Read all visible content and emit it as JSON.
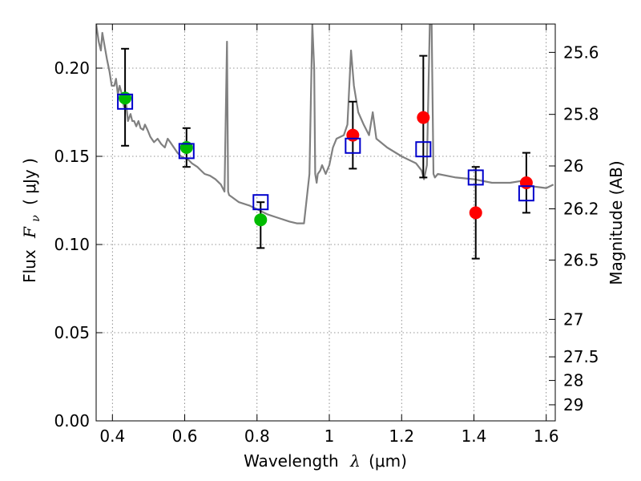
{
  "chart_data": {
    "type": "scatter",
    "xlabel": "Wavelength",
    "xlabel_symbol": "λ",
    "xlabel_unit": "(μm)",
    "ylabel": "Flux",
    "ylabel_symbol": "F",
    "ylabel_subscript": "ν",
    "ylabel_unit": "( μJy )",
    "ylabel_right": "Magnitude (AB)",
    "xlim": [
      0.355,
      1.625
    ],
    "ylim": [
      0.0,
      0.225
    ],
    "grid": true,
    "x_ticks": [
      {
        "value": 0.4,
        "label": "0.4"
      },
      {
        "value": 0.6,
        "label": "0.6"
      },
      {
        "value": 0.8,
        "label": "0.8"
      },
      {
        "value": 1.0,
        "label": "1"
      },
      {
        "value": 1.2,
        "label": "1.2"
      },
      {
        "value": 1.4,
        "label": "1.4"
      },
      {
        "value": 1.6,
        "label": "1.6"
      }
    ],
    "y_ticks": [
      {
        "value": 0.0,
        "label": "0.00"
      },
      {
        "value": 0.05,
        "label": "0.05"
      },
      {
        "value": 0.1,
        "label": "0.10"
      },
      {
        "value": 0.15,
        "label": "0.15"
      },
      {
        "value": 0.2,
        "label": "0.20"
      }
    ],
    "mag_ticks": [
      {
        "value": 25.6,
        "label": "25.6"
      },
      {
        "value": 25.8,
        "label": "25.8"
      },
      {
        "value": 26.0,
        "label": "26"
      },
      {
        "value": 26.2,
        "label": "26.2"
      },
      {
        "value": 26.5,
        "label": "26.5"
      },
      {
        "value": 27.0,
        "label": "27"
      },
      {
        "value": 27.5,
        "label": "27.5"
      },
      {
        "value": 28.0,
        "label": "28"
      },
      {
        "value": 29.0,
        "label": "29"
      }
    ],
    "model_spectrum": {
      "color": "#808080",
      "x": [
        0.355,
        0.362,
        0.368,
        0.372,
        0.378,
        0.385,
        0.392,
        0.398,
        0.405,
        0.41,
        0.415,
        0.42,
        0.425,
        0.432,
        0.438,
        0.443,
        0.45,
        0.455,
        0.46,
        0.466,
        0.472,
        0.478,
        0.485,
        0.49,
        0.497,
        0.505,
        0.515,
        0.525,
        0.535,
        0.545,
        0.553,
        0.56,
        0.57,
        0.58,
        0.59,
        0.6,
        0.61,
        0.62,
        0.635,
        0.645,
        0.655,
        0.67,
        0.685,
        0.7,
        0.71,
        0.717,
        0.72,
        0.723,
        0.73,
        0.75,
        0.78,
        0.8,
        0.83,
        0.86,
        0.89,
        0.91,
        0.93,
        0.945,
        0.953,
        0.958,
        0.961,
        0.965,
        0.968,
        0.975,
        0.98,
        0.99,
        1.0,
        1.01,
        1.02,
        1.04,
        1.05,
        1.06,
        1.068,
        1.08,
        1.095,
        1.11,
        1.12,
        1.13,
        1.16,
        1.2,
        1.24,
        1.255,
        1.262,
        1.27,
        1.278,
        1.283,
        1.288,
        1.292,
        1.3,
        1.35,
        1.4,
        1.45,
        1.5,
        1.53,
        1.56,
        1.6,
        1.62
      ],
      "y": [
        0.225,
        0.215,
        0.21,
        0.22,
        0.213,
        0.205,
        0.198,
        0.19,
        0.19,
        0.194,
        0.185,
        0.19,
        0.186,
        0.178,
        0.18,
        0.17,
        0.174,
        0.17,
        0.17,
        0.167,
        0.17,
        0.166,
        0.165,
        0.168,
        0.165,
        0.161,
        0.158,
        0.16,
        0.157,
        0.155,
        0.16,
        0.158,
        0.155,
        0.152,
        0.15,
        0.149,
        0.148,
        0.146,
        0.144,
        0.142,
        0.14,
        0.139,
        0.137,
        0.134,
        0.13,
        0.215,
        0.13,
        0.128,
        0.127,
        0.124,
        0.122,
        0.12,
        0.117,
        0.115,
        0.113,
        0.112,
        0.112,
        0.14,
        0.225,
        0.2,
        0.14,
        0.135,
        0.14,
        0.142,
        0.145,
        0.14,
        0.145,
        0.155,
        0.16,
        0.162,
        0.168,
        0.21,
        0.19,
        0.175,
        0.168,
        0.162,
        0.175,
        0.16,
        0.155,
        0.15,
        0.146,
        0.142,
        0.137,
        0.145,
        0.225,
        0.225,
        0.14,
        0.138,
        0.14,
        0.138,
        0.137,
        0.135,
        0.135,
        0.136,
        0.133,
        0.132,
        0.134
      ]
    },
    "series": [
      {
        "marker": "circle",
        "color": "#00bb00",
        "x": [
          0.435,
          0.605,
          0.81
        ],
        "y": [
          0.183,
          0.155,
          0.114
        ],
        "yerr_low": [
          0.156,
          0.144,
          0.098
        ],
        "yerr_high": [
          0.211,
          0.166,
          0.124
        ]
      },
      {
        "marker": "circle",
        "color": "#ff0000",
        "x": [
          1.065,
          1.26,
          1.405,
          1.545
        ],
        "y": [
          0.162,
          0.172,
          0.118,
          0.135
        ],
        "yerr_low": [
          0.143,
          0.138,
          0.092,
          0.118
        ],
        "yerr_high": [
          0.181,
          0.207,
          0.144,
          0.152
        ]
      },
      {
        "marker": "open-square",
        "color": "#0000cc",
        "x": [
          0.435,
          0.605,
          0.81,
          1.065,
          1.26,
          1.405,
          1.545
        ],
        "y": [
          0.181,
          0.153,
          0.124,
          0.156,
          0.154,
          0.138,
          0.129
        ]
      }
    ]
  }
}
